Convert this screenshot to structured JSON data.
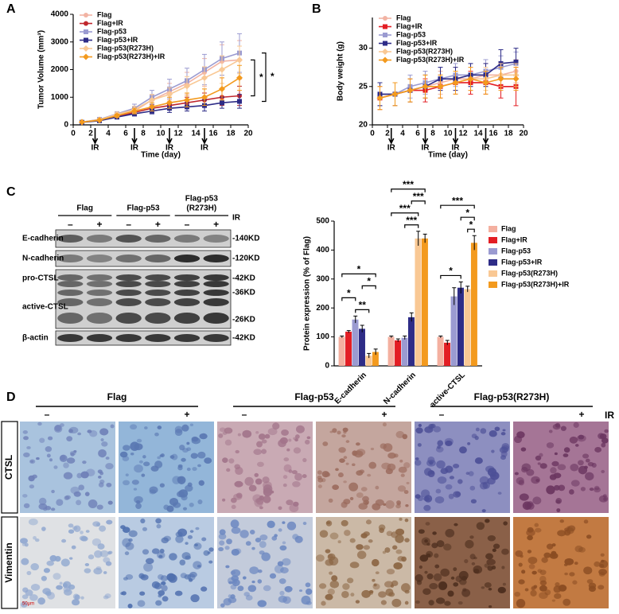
{
  "chart_data": [
    {
      "type": "line",
      "panel_label": "A",
      "x_label": "Time (day)",
      "y_label": "Tumor Volume (mm³)",
      "x": [
        1,
        3,
        5,
        7,
        9,
        11,
        13,
        15,
        17,
        19
      ],
      "xlim": [
        0,
        20
      ],
      "xticks": [
        0,
        2,
        4,
        6,
        8,
        10,
        12,
        14,
        16,
        18,
        20
      ],
      "ylim": [
        0,
        4000
      ],
      "yticks": [
        0,
        1000,
        2000,
        3000,
        4000
      ],
      "legend": "upper-left",
      "series": [
        {
          "name": "Flag",
          "color": "#f2b3a3",
          "marker": "circle",
          "values": [
            100,
            180,
            350,
            500,
            900,
            1200,
            1500,
            1900,
            2300,
            2350
          ],
          "errors": [
            20,
            40,
            80,
            120,
            200,
            300,
            400,
            500,
            600,
            700
          ]
        },
        {
          "name": "Flag+IR",
          "color": "#c0272d",
          "marker": "circle",
          "values": [
            100,
            170,
            300,
            450,
            600,
            700,
            800,
            900,
            1000,
            1050
          ],
          "errors": [
            20,
            30,
            60,
            80,
            120,
            150,
            200,
            250,
            300,
            350
          ]
        },
        {
          "name": "Flag-p53",
          "color": "#9b9bd1",
          "marker": "square",
          "values": [
            100,
            200,
            400,
            600,
            1000,
            1300,
            1600,
            2000,
            2400,
            2600
          ],
          "errors": [
            20,
            40,
            80,
            150,
            250,
            350,
            450,
            550,
            600,
            700
          ]
        },
        {
          "name": "Flag-p53+IR",
          "color": "#2e2c87",
          "marker": "square",
          "values": [
            90,
            150,
            280,
            400,
            500,
            600,
            650,
            700,
            800,
            850
          ],
          "errors": [
            20,
            30,
            50,
            80,
            100,
            150,
            150,
            200,
            200,
            250
          ]
        },
        {
          "name": "Flag-p53(R273H)",
          "color": "#f9c894",
          "marker": "diamond",
          "values": [
            100,
            190,
            380,
            550,
            900,
            1100,
            1400,
            1700,
            2000,
            2350
          ],
          "errors": [
            20,
            40,
            80,
            120,
            200,
            250,
            350,
            400,
            500,
            500
          ]
        },
        {
          "name": "Flag-p53(R273H)+IR",
          "color": "#f39a1e",
          "marker": "diamond",
          "values": [
            100,
            170,
            330,
            500,
            650,
            800,
            900,
            1000,
            1300,
            1700
          ],
          "errors": [
            20,
            30,
            60,
            100,
            150,
            200,
            250,
            300,
            400,
            450
          ]
        }
      ],
      "annotations": [
        {
          "x": 2.5,
          "text": "IR"
        },
        {
          "x": 7,
          "text": "IR"
        },
        {
          "x": 11,
          "text": "IR"
        },
        {
          "x": 15,
          "text": "IR"
        }
      ],
      "brackets": [
        {
          "y": [
            2350,
            1050
          ],
          "text": "*"
        },
        {
          "y": [
            2600,
            850
          ],
          "text": "*"
        }
      ]
    },
    {
      "type": "line",
      "panel_label": "B",
      "x_label": "Time (day)",
      "y_label": "Body weight (g)",
      "x": [
        1,
        3,
        5,
        7,
        9,
        11,
        13,
        15,
        17,
        19
      ],
      "xlim": [
        0,
        20
      ],
      "xticks": [
        0,
        2,
        4,
        6,
        8,
        10,
        12,
        14,
        16,
        18,
        20
      ],
      "ylim": [
        20,
        34
      ],
      "yticks": [
        20,
        25,
        30
      ],
      "legend": "upper-left",
      "series": [
        {
          "name": "Flag",
          "color": "#f2b3a3",
          "marker": "circle",
          "values": [
            24,
            24,
            24.5,
            25,
            25.5,
            26,
            26,
            26.5,
            26.5,
            27
          ],
          "errors": [
            1.5,
            1.5,
            1.5,
            1.5,
            1.5,
            1.5,
            1.5,
            1.5,
            1.5,
            1.5
          ]
        },
        {
          "name": "Flag+IR",
          "color": "#e31e24",
          "marker": "square",
          "values": [
            23.5,
            24,
            24.5,
            24.5,
            25,
            25.5,
            25.5,
            25.5,
            25,
            25
          ],
          "errors": [
            1.5,
            1.5,
            1.5,
            1.5,
            1.5,
            1.5,
            1.5,
            1.5,
            1.5,
            2.5
          ]
        },
        {
          "name": "Flag-p53",
          "color": "#9b9bd1",
          "marker": "square",
          "values": [
            24,
            24,
            25,
            25.5,
            26,
            26.5,
            26.5,
            27,
            27.5,
            28
          ],
          "errors": [
            1.5,
            1.5,
            1.5,
            1.5,
            1.5,
            1.5,
            1.5,
            1.5,
            1.5,
            1.5
          ]
        },
        {
          "name": "Flag-p53+IR",
          "color": "#2e2c87",
          "marker": "square",
          "values": [
            24,
            24,
            24.5,
            25,
            26,
            26,
            26.5,
            26.5,
            28,
            28.2
          ],
          "errors": [
            1.5,
            1.5,
            1.5,
            1.5,
            1.5,
            1.5,
            1.5,
            1.5,
            1.8,
            1.8
          ]
        },
        {
          "name": "Flag-p53(R273H)",
          "color": "#f9c894",
          "marker": "diamond",
          "values": [
            23.5,
            24,
            24.5,
            25,
            25,
            25.5,
            26,
            26,
            26.5,
            26.5
          ],
          "errors": [
            1.5,
            1.5,
            1.5,
            1.5,
            1.5,
            1.5,
            1.5,
            1.5,
            1.5,
            1.5
          ]
        },
        {
          "name": "Flag-p53(R273H)+IR",
          "color": "#f39a1e",
          "marker": "diamond",
          "values": [
            23.5,
            24,
            24.5,
            25,
            25,
            25.5,
            26,
            25.5,
            26,
            26
          ],
          "errors": [
            1.5,
            1.5,
            1.5,
            1.5,
            1.5,
            1.5,
            1.5,
            1.5,
            1.5,
            1.5
          ]
        }
      ],
      "annotations": [
        {
          "x": 2.5,
          "text": "IR"
        },
        {
          "x": 7,
          "text": "IR"
        },
        {
          "x": 11,
          "text": "IR"
        },
        {
          "x": 15,
          "text": "IR"
        }
      ]
    },
    {
      "type": "bar",
      "y_label": "Protein expression (% of Flag)",
      "categories": [
        "E-cadherin",
        "N-cadherin",
        "active-CTSL"
      ],
      "ylim": [
        0,
        500
      ],
      "yticks": [
        0,
        100,
        200,
        300,
        400,
        500
      ],
      "legend": "right",
      "series": [
        {
          "name": "Flag",
          "color": "#f4b0a0",
          "values": [
            100,
            100,
            100
          ],
          "errors": [
            3,
            3,
            3
          ]
        },
        {
          "name": "Flag+IR",
          "color": "#e31e24",
          "values": [
            118,
            88,
            80
          ],
          "errors": [
            4,
            5,
            8
          ]
        },
        {
          "name": "Flag-p53",
          "color": "#9b9bd1",
          "values": [
            160,
            97,
            240
          ],
          "errors": [
            12,
            6,
            30
          ]
        },
        {
          "name": "Flag-p53+IR",
          "color": "#2e2c87",
          "values": [
            128,
            168,
            270
          ],
          "errors": [
            12,
            15,
            20
          ]
        },
        {
          "name": "Flag-p53(R273H)",
          "color": "#f9c894",
          "values": [
            35,
            440,
            265
          ],
          "errors": [
            8,
            25,
            10
          ]
        },
        {
          "name": "Flag-p53(R273H)+IR",
          "color": "#f39a1e",
          "values": [
            48,
            440,
            425
          ],
          "errors": [
            10,
            15,
            25
          ]
        }
      ],
      "brackets": [
        {
          "category": 0,
          "series": [
            2,
            4
          ],
          "text": "**"
        },
        {
          "category": 0,
          "series": [
            0,
            2
          ],
          "text": "*"
        },
        {
          "category": 0,
          "series": [
            3,
            5
          ],
          "text": "*"
        },
        {
          "category": 0,
          "series": [
            0,
            5
          ],
          "text": "*"
        },
        {
          "category": 1,
          "series": [
            2,
            4
          ],
          "text": "***"
        },
        {
          "category": 1,
          "series": [
            0,
            4
          ],
          "text": "***"
        },
        {
          "category": 1,
          "series": [
            3,
            5
          ],
          "text": "***"
        },
        {
          "category": 1,
          "series": [
            0,
            5
          ],
          "text": "***"
        },
        {
          "category": 2,
          "series": [
            0,
            3
          ],
          "text": "*"
        },
        {
          "category": 2,
          "series": [
            4,
            5
          ],
          "text": "*"
        },
        {
          "category": 2,
          "series": [
            3,
            5
          ],
          "text": "*"
        },
        {
          "category": 2,
          "series": [
            0,
            5
          ],
          "text": "***"
        }
      ]
    }
  ],
  "blot": {
    "panel_label": "C",
    "groups": [
      [
        "Flag"
      ],
      [
        "Flag-p53"
      ],
      [
        "Flag-p53",
        "(R273H)"
      ]
    ],
    "treatments": [
      "–",
      "+"
    ],
    "treatment_label": "IR",
    "rows": [
      {
        "labels": [
          "E-cadherin"
        ],
        "markers": [
          "-140KD"
        ]
      },
      {
        "labels": [
          "N-cadherin"
        ],
        "markers": [
          "-120KD"
        ]
      },
      {
        "labels": [
          "pro-CTSL",
          "active-CTSL"
        ],
        "markers": [
          "-42KD",
          "-36KD",
          "-26KD"
        ]
      },
      {
        "labels": [
          "β-actin"
        ],
        "markers": [
          "-42KD"
        ]
      }
    ]
  },
  "ihc": {
    "panel_label": "D",
    "groups": [
      "Flag",
      "Flag-p53",
      "Flag-p53(R273H)"
    ],
    "treatments": [
      "–",
      "+"
    ],
    "treatment_label": "IR",
    "rows": [
      "CTSL",
      "Vimentin"
    ],
    "scale_bar": "50μm"
  }
}
